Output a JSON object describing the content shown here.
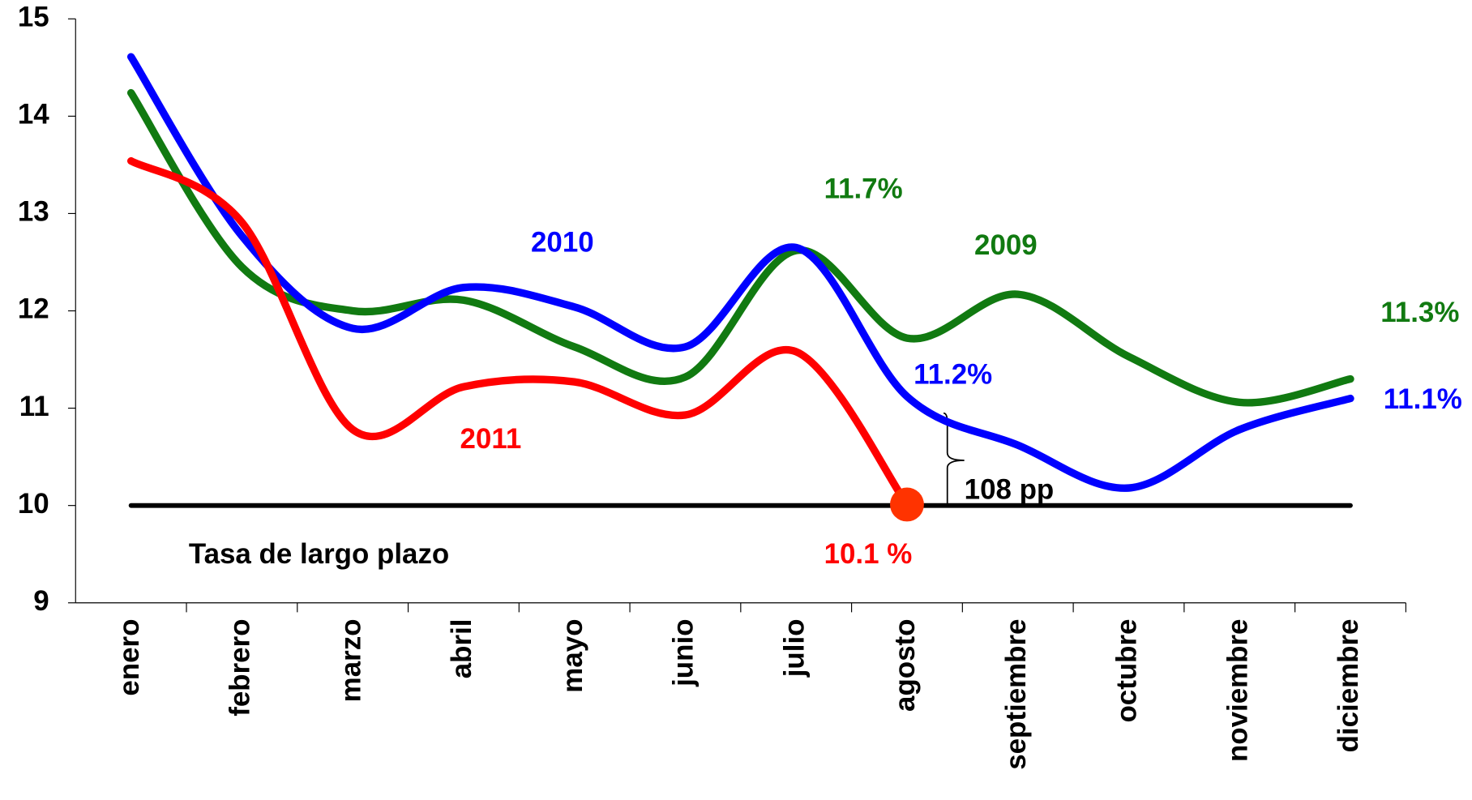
{
  "chart_data": {
    "type": "line",
    "categories": [
      "enero",
      "febrero",
      "marzo",
      "abril",
      "mayo",
      "junio",
      "julio",
      "agosto",
      "septiembre",
      "octubre",
      "noviembre",
      "diciembre"
    ],
    "series": [
      {
        "name": "2009",
        "color": "#117a11",
        "values": [
          14.24,
          12.45,
          12.0,
          12.11,
          11.63,
          11.32,
          12.62,
          11.72,
          12.17,
          11.53,
          11.06,
          11.3
        ]
      },
      {
        "name": "2010",
        "color": "#0000ff",
        "values": [
          14.61,
          12.77,
          11.82,
          12.24,
          12.04,
          11.63,
          12.65,
          11.12,
          10.62,
          10.18,
          10.78,
          11.1
        ]
      },
      {
        "name": "2011",
        "color": "#ff0000",
        "values": [
          13.54,
          12.91,
          10.78,
          11.22,
          11.27,
          10.93,
          11.58,
          10.01,
          null,
          null,
          null,
          null
        ]
      },
      {
        "name": "Tasa de largo plazo",
        "color": "#000000",
        "values": [
          10,
          10,
          10,
          10,
          10,
          10,
          10,
          10,
          10,
          10,
          10,
          10
        ]
      }
    ],
    "annotations": [
      "11.7%",
      "11.2%",
      "11.3%",
      "11.1%",
      "10.1 %",
      "108 pp"
    ],
    "ylim": [
      9,
      15
    ],
    "yticks": [
      9,
      10,
      11,
      12,
      13,
      14,
      15
    ],
    "grid": false
  }
}
